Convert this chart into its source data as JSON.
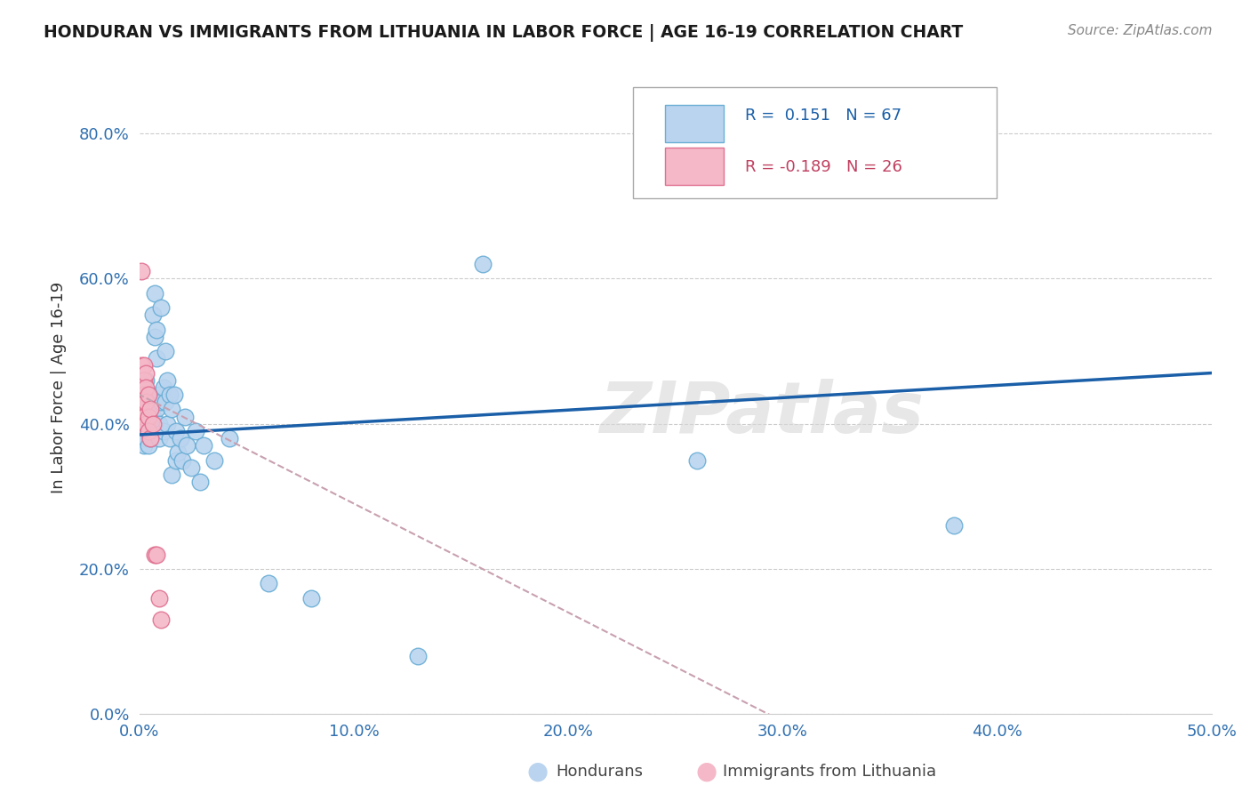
{
  "title": "HONDURAN VS IMMIGRANTS FROM LITHUANIA IN LABOR FORCE | AGE 16-19 CORRELATION CHART",
  "source": "Source: ZipAtlas.com",
  "ylabel": "In Labor Force | Age 16-19",
  "xlim": [
    0.0,
    0.5
  ],
  "ylim": [
    0.0,
    0.9
  ],
  "xticks": [
    0.0,
    0.1,
    0.2,
    0.3,
    0.4,
    0.5
  ],
  "yticks": [
    0.0,
    0.2,
    0.4,
    0.6,
    0.8
  ],
  "xtick_labels": [
    "0.0%",
    "10.0%",
    "20.0%",
    "30.0%",
    "40.0%",
    "50.0%"
  ],
  "ytick_labels": [
    "0.0%",
    "20.0%",
    "40.0%",
    "60.0%",
    "80.0%"
  ],
  "honduran_color": "#bad4ef",
  "honduran_edge": "#6aaed6",
  "lithuania_color": "#f4b8c8",
  "lithuania_edge": "#e07090",
  "blue_line_color": "#1a5fa8",
  "pink_line_color": "#c8a0b0",
  "R_honduran": 0.151,
  "N_honduran": 67,
  "R_lithuania": -0.189,
  "N_lithuania": 26,
  "legend_label_honduran": "Hondurans",
  "legend_label_lithuania": "Immigrants from Lithuania",
  "watermark": "ZIPatlas",
  "honduran_x": [
    0.001,
    0.001,
    0.001,
    0.001,
    0.002,
    0.002,
    0.002,
    0.002,
    0.002,
    0.003,
    0.003,
    0.003,
    0.003,
    0.003,
    0.004,
    0.004,
    0.004,
    0.004,
    0.005,
    0.005,
    0.005,
    0.005,
    0.006,
    0.006,
    0.006,
    0.006,
    0.007,
    0.007,
    0.007,
    0.008,
    0.008,
    0.008,
    0.009,
    0.009,
    0.009,
    0.01,
    0.01,
    0.011,
    0.011,
    0.012,
    0.012,
    0.013,
    0.013,
    0.014,
    0.014,
    0.015,
    0.015,
    0.016,
    0.017,
    0.017,
    0.018,
    0.019,
    0.02,
    0.021,
    0.022,
    0.024,
    0.026,
    0.028,
    0.03,
    0.035,
    0.042,
    0.06,
    0.08,
    0.13,
    0.16,
    0.26,
    0.38
  ],
  "honduran_y": [
    0.4,
    0.44,
    0.38,
    0.42,
    0.43,
    0.39,
    0.41,
    0.37,
    0.45,
    0.4,
    0.44,
    0.38,
    0.42,
    0.46,
    0.41,
    0.39,
    0.43,
    0.37,
    0.42,
    0.4,
    0.44,
    0.38,
    0.55,
    0.43,
    0.39,
    0.41,
    0.58,
    0.52,
    0.4,
    0.53,
    0.49,
    0.42,
    0.44,
    0.4,
    0.38,
    0.43,
    0.56,
    0.45,
    0.39,
    0.5,
    0.43,
    0.46,
    0.4,
    0.44,
    0.38,
    0.42,
    0.33,
    0.44,
    0.39,
    0.35,
    0.36,
    0.38,
    0.35,
    0.41,
    0.37,
    0.34,
    0.39,
    0.32,
    0.37,
    0.35,
    0.38,
    0.18,
    0.16,
    0.08,
    0.62,
    0.35,
    0.26
  ],
  "lithuania_x": [
    0.001,
    0.001,
    0.001,
    0.001,
    0.001,
    0.001,
    0.001,
    0.002,
    0.002,
    0.002,
    0.002,
    0.002,
    0.003,
    0.003,
    0.003,
    0.003,
    0.004,
    0.004,
    0.004,
    0.005,
    0.005,
    0.006,
    0.007,
    0.008,
    0.009,
    0.01
  ],
  "lithuania_y": [
    0.61,
    0.48,
    0.46,
    0.45,
    0.44,
    0.43,
    0.42,
    0.48,
    0.46,
    0.44,
    0.43,
    0.41,
    0.47,
    0.45,
    0.43,
    0.4,
    0.44,
    0.41,
    0.39,
    0.42,
    0.38,
    0.4,
    0.22,
    0.22,
    0.16,
    0.13
  ]
}
